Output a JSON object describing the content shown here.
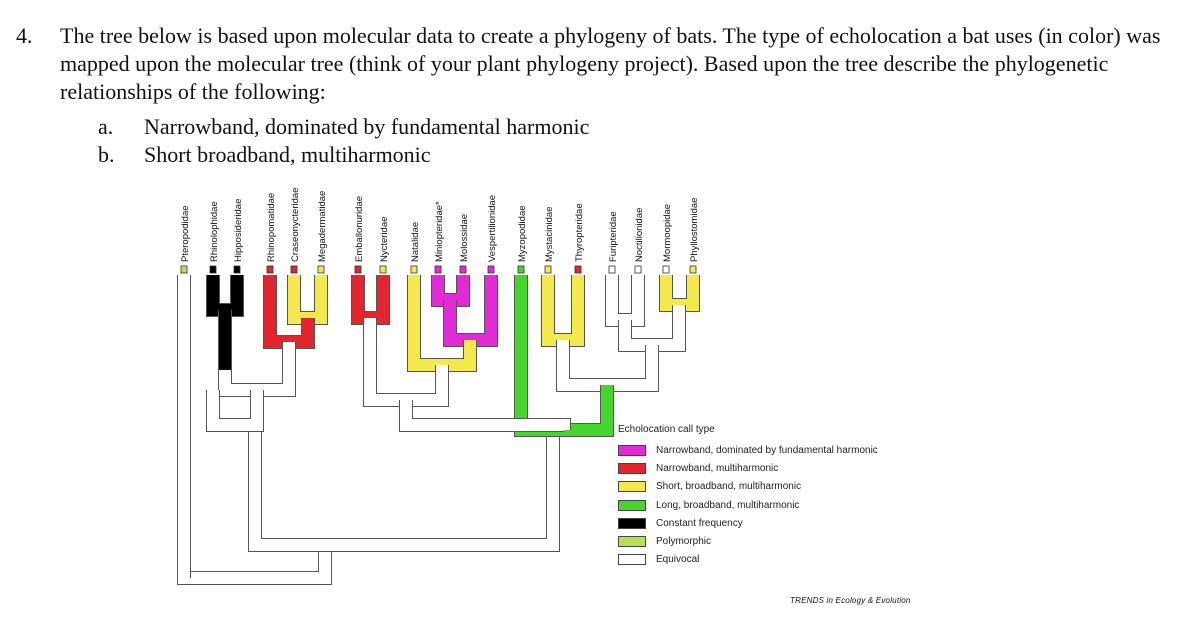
{
  "question": {
    "number": "4.",
    "text": "The tree below is based upon molecular data to create a phylogeny of bats.  The type of echolocation a bat uses (in color)  was mapped upon the molecular tree (think of your plant phylogeny project).   Based upon the tree describe the phylogenetic relationships of the following:",
    "items": [
      {
        "label": "a.",
        "text": "Narrowband, dominated by fundamental harmonic"
      },
      {
        "label": "b.",
        "text": "Short broadband, multiharmonic"
      }
    ]
  },
  "figure": {
    "taxa": [
      {
        "name": "Pteropodidae",
        "color": "#b6e05a"
      },
      {
        "name": "Rhinolophidae",
        "color": "#000000"
      },
      {
        "name": "Hipposideridae",
        "color": "#000000"
      },
      {
        "name": "Rhinopomatidae",
        "color": "#e3262d"
      },
      {
        "name": "Craseonycteridae",
        "color": "#e3262d"
      },
      {
        "name": "Megadermatidae",
        "color": "#f5e84c"
      },
      {
        "name": "Emballonuridae",
        "color": "#e3262d"
      },
      {
        "name": "Nycteridae",
        "color": "#f5e84c"
      },
      {
        "name": "Natalidae",
        "color": "#f5e84c"
      },
      {
        "name": "Miniopteridae*",
        "color": "#e22bd6"
      },
      {
        "name": "Molossidae",
        "color": "#e22bd6"
      },
      {
        "name": "Vespertilionidae",
        "color": "#e22bd6"
      },
      {
        "name": "Myzopodidae",
        "color": "#44d62c"
      },
      {
        "name": "Mystacinidae",
        "color": "#f5e84c"
      },
      {
        "name": "Thyropteridae",
        "color": "#e3262d"
      },
      {
        "name": "Furipteridae",
        "color": "#ffffff"
      },
      {
        "name": "Noctilionidae",
        "color": "#ffffff"
      },
      {
        "name": "Mormoopidae",
        "color": "#ffffff"
      },
      {
        "name": "Phyllostomidae",
        "color": "#f5e84c"
      }
    ],
    "legend": {
      "title": "Echolocation call type",
      "items": [
        {
          "label": "Narrowband, dominated by fundamental harmonic",
          "color": "#e22bd6"
        },
        {
          "label": "Narrowband, multiharmonic",
          "color": "#e3262d"
        },
        {
          "label": "Short, broadband, multiharmonic",
          "color": "#f5e84c"
        },
        {
          "label": "Long, broadband, multiharmonic",
          "color": "#44d62c"
        },
        {
          "label": "Constant frequency",
          "color": "#000000"
        },
        {
          "label": "Polymorphic",
          "color": "#b6e05a"
        },
        {
          "label": "Equivocal",
          "color": "#ffffff"
        }
      ]
    },
    "credit": "TRENDS in Ecology & Evolution"
  }
}
